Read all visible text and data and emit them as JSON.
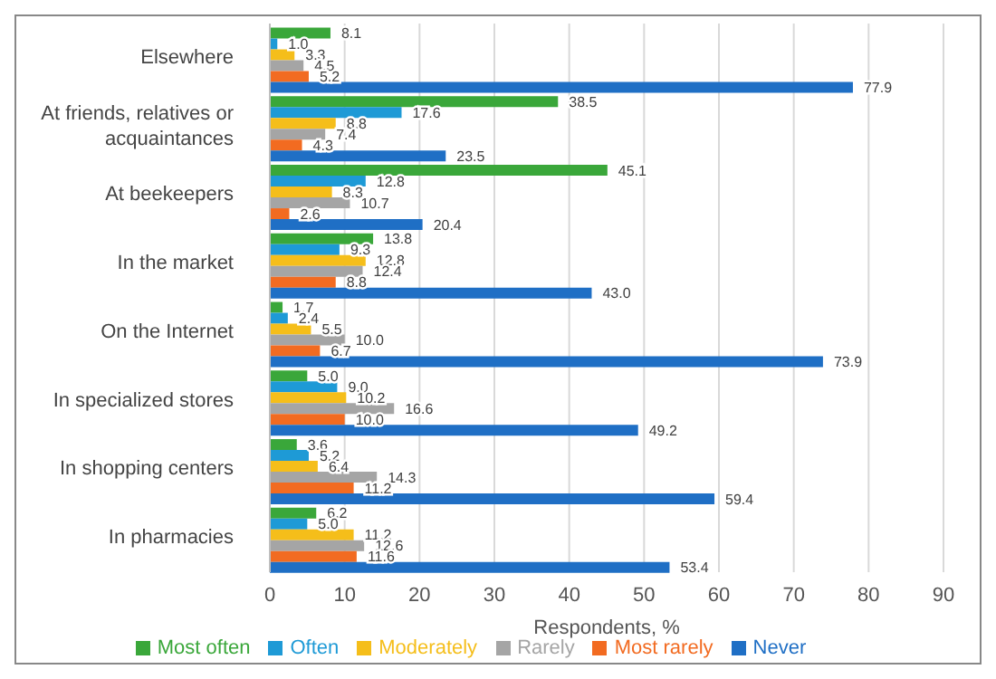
{
  "chart_data": {
    "type": "bar",
    "orientation": "horizontal",
    "xlabel": "Respondents, %",
    "categories": [
      "Elsewhere",
      "At friends, relatives or acquaintances",
      "At beekeepers",
      "In the market",
      "On the Internet",
      "In specialized stores",
      "In shopping centers",
      "In pharmacies"
    ],
    "series": [
      {
        "name": "Most often",
        "color": "#3aa73a",
        "values": [
          8.1,
          38.5,
          45.1,
          13.8,
          1.7,
          5.0,
          3.6,
          6.2
        ],
        "value_labels": [
          "8.1",
          "38.5",
          "45.1",
          "13.8",
          "1.7",
          "5.0",
          "3.6",
          "6.2"
        ]
      },
      {
        "name": "Often",
        "color": "#1e9ad6",
        "values": [
          1.0,
          17.6,
          12.8,
          9.3,
          2.4,
          9.0,
          5.2,
          5.0
        ],
        "value_labels": [
          "1.0",
          "17.6",
          "12.8",
          "9.3",
          "2.4",
          "9.0",
          "5.2",
          "5.0"
        ]
      },
      {
        "name": "Moderately",
        "color": "#f5be1a",
        "values": [
          3.3,
          8.8,
          8.3,
          12.8,
          5.5,
          10.2,
          6.4,
          11.2
        ],
        "value_labels": [
          "3.3",
          "8.8",
          "8.3",
          "12.8",
          "5.5",
          "10.2",
          "6.4",
          "11.2"
        ]
      },
      {
        "name": "Rarely",
        "color": "#a5a5a5",
        "values": [
          4.5,
          7.4,
          10.7,
          12.4,
          10.0,
          16.6,
          14.3,
          12.6
        ],
        "value_labels": [
          "4.5",
          "7.4",
          "10.7",
          "12.4",
          "10.0",
          "16.6",
          "14.3",
          "12.6"
        ]
      },
      {
        "name": "Most rarely",
        "color": "#f26b21",
        "values": [
          5.2,
          4.3,
          2.6,
          8.8,
          6.7,
          10.0,
          11.2,
          11.6
        ],
        "value_labels": [
          "5.2",
          "4.3",
          "2.6",
          "8.8",
          "6.7",
          "10.0",
          "11.2",
          "11.6"
        ]
      },
      {
        "name": "Never",
        "color": "#1f6fc5",
        "values": [
          77.9,
          23.5,
          20.4,
          43.0,
          73.9,
          49.2,
          59.4,
          53.4
        ],
        "value_labels": [
          "77.9",
          "23.5",
          "20.4",
          "43.0",
          "73.9",
          "49.2",
          "59.4",
          "53.4"
        ]
      }
    ],
    "xlim": [
      0,
      90
    ],
    "xticks": [
      0,
      10,
      20,
      30,
      40,
      50,
      60,
      70,
      80,
      90
    ],
    "grid": "x",
    "legend": "bottom"
  }
}
